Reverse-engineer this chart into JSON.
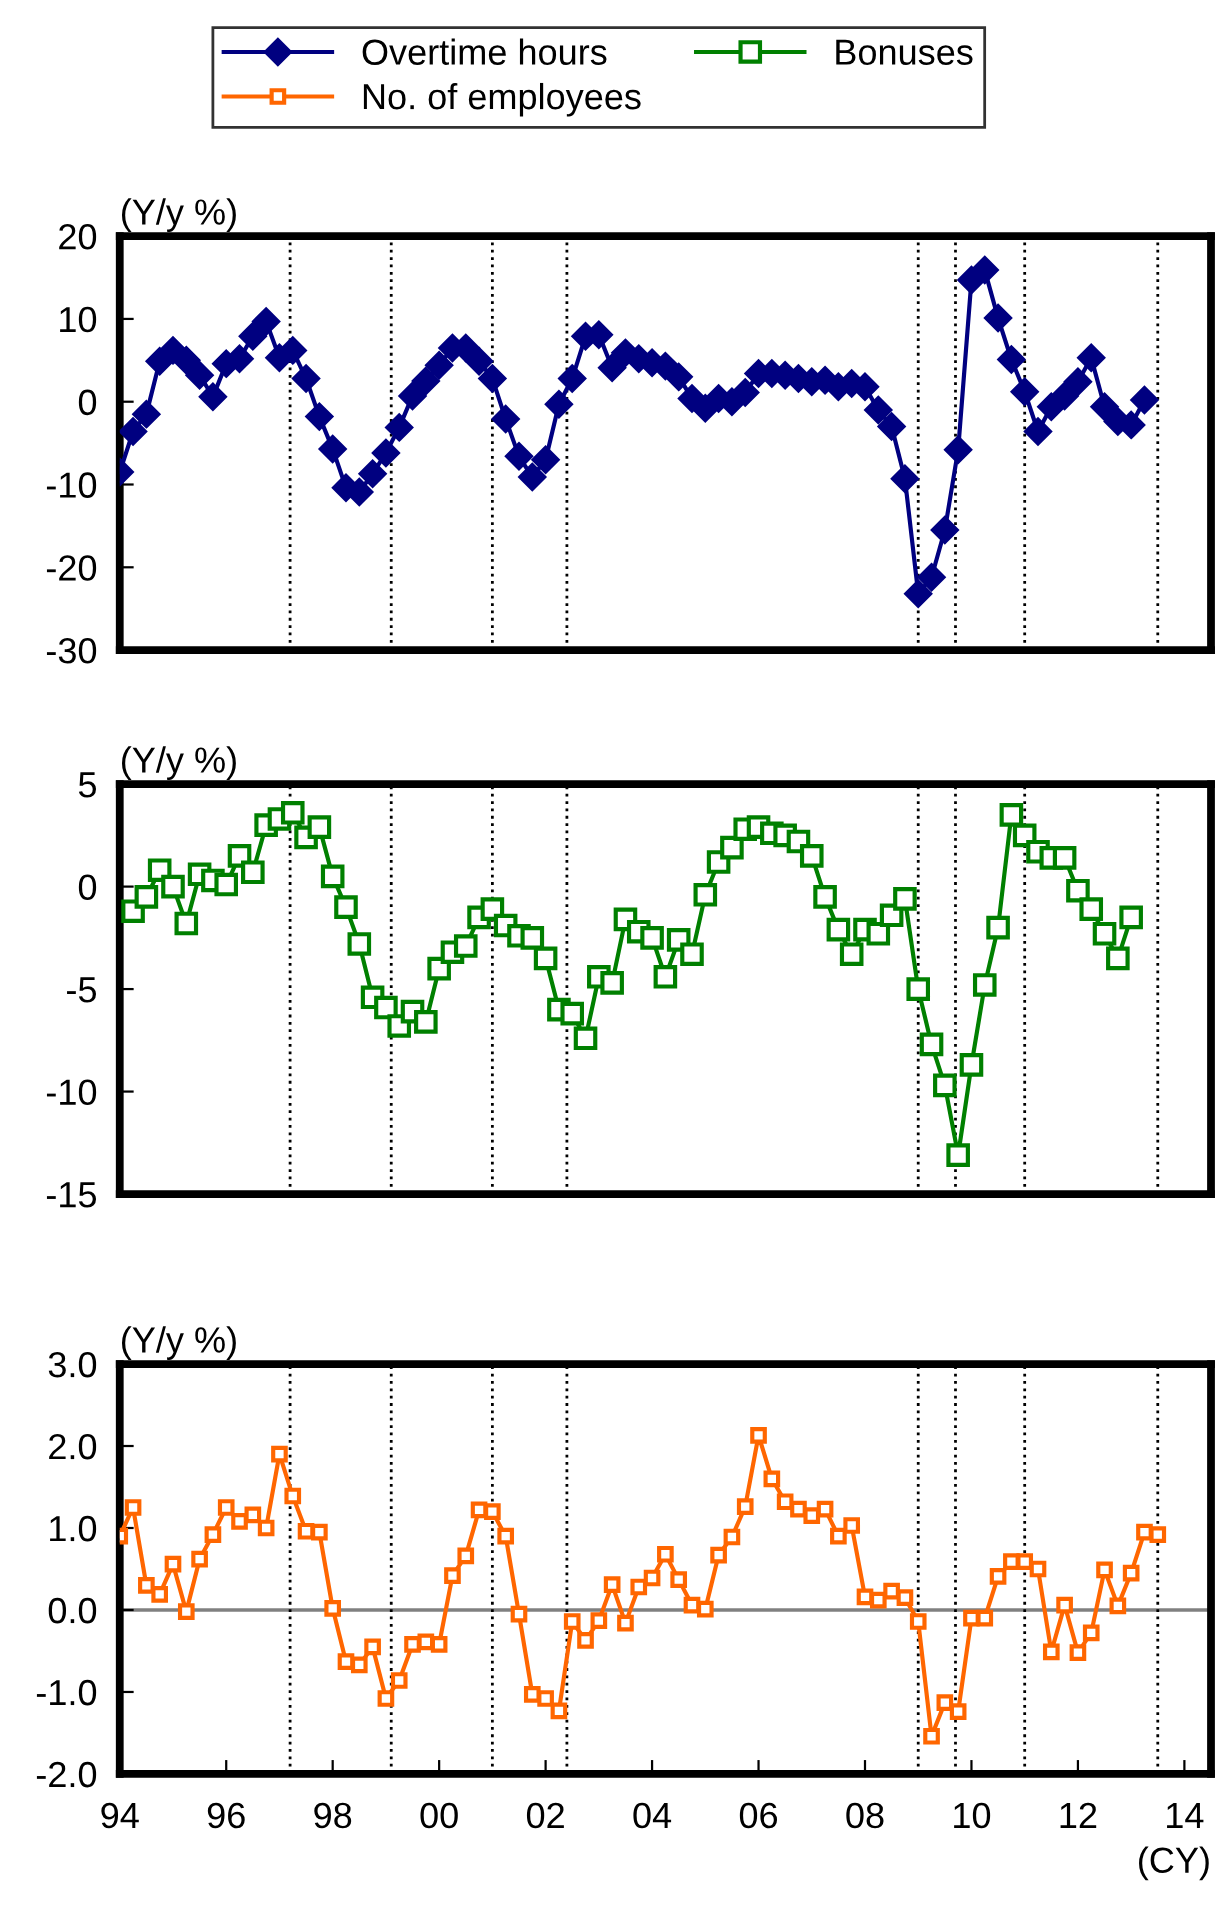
{
  "chart_data": [
    {
      "type": "line",
      "ylabel": "(Y/y %)",
      "xlim": [
        1994,
        2014.5
      ],
      "ylim": [
        -30,
        20
      ],
      "yticks": [
        -30,
        -20,
        -10,
        0,
        10,
        20
      ],
      "tick_labels": "y",
      "grid": false,
      "legend": "top",
      "ref_lines": [
        {
          "axis": "x",
          "value": 1997.2,
          "color": "#000000",
          "line_style": "dotted"
        },
        {
          "axis": "x",
          "value": 1999.1,
          "color": "#000000",
          "line_style": "dotted"
        },
        {
          "axis": "x",
          "value": 2001.0,
          "color": "#000000",
          "line_style": "dotted"
        },
        {
          "axis": "x",
          "value": 2002.4,
          "color": "#000000",
          "line_style": "dotted"
        },
        {
          "axis": "x",
          "value": 2009.0,
          "color": "#000000",
          "line_style": "dotted"
        },
        {
          "axis": "x",
          "value": 2009.7,
          "color": "#000000",
          "line_style": "dotted"
        },
        {
          "axis": "x",
          "value": 2011.0,
          "color": "#000000",
          "line_style": "dotted"
        },
        {
          "axis": "x",
          "value": 2013.5,
          "color": "#000000",
          "line_style": "dotted"
        }
      ],
      "series": [
        {
          "name": "Overtime hours",
          "color": "#000080",
          "marker": "diamond",
          "line_style": "solid",
          "x": [
            1994,
            1994.25,
            1994.5,
            1994.75,
            1995,
            1995.25,
            1995.5,
            1995.75,
            1996,
            1996.25,
            1996.5,
            1996.75,
            1997,
            1997.25,
            1997.5,
            1997.75,
            1998,
            1998.25,
            1998.5,
            1998.75,
            1999,
            1999.25,
            1999.5,
            1999.75,
            2000,
            2000.25,
            2000.5,
            2000.75,
            2001,
            2001.25,
            2001.5,
            2001.75,
            2002,
            2002.25,
            2002.5,
            2002.75,
            2003,
            2003.25,
            2003.5,
            2003.75,
            2004,
            2004.25,
            2004.5,
            2004.75,
            2005,
            2005.25,
            2005.5,
            2005.75,
            2006,
            2006.25,
            2006.5,
            2006.75,
            2007,
            2007.25,
            2007.5,
            2007.75,
            2008,
            2008.25,
            2008.5,
            2008.75,
            2009,
            2009.25,
            2009.5,
            2009.75,
            2010,
            2010.25,
            2010.5,
            2010.75,
            2011,
            2011.25,
            2011.5,
            2011.75,
            2012,
            2012.25,
            2012.5,
            2012.75,
            2013,
            2013.25
          ],
          "values": [
            -8.5,
            -3.6,
            -1.5,
            4.9,
            6.2,
            5.0,
            3.2,
            0.6,
            4.6,
            5.2,
            7.9,
            9.7,
            5.3,
            6.2,
            2.8,
            -1.8,
            -5.7,
            -10.4,
            -10.9,
            -8.7,
            -6.2,
            -3.1,
            0.7,
            2.5,
            4.4,
            6.5,
            6.5,
            4.9,
            2.8,
            -2.1,
            -6.6,
            -9.1,
            -7.0,
            -0.3,
            2.8,
            7.9,
            8.1,
            4.1,
            5.9,
            5.2,
            4.7,
            4.3,
            3.0,
            0.4,
            -0.8,
            0.4,
            0.0,
            1.1,
            3.4,
            3.4,
            3.2,
            2.8,
            2.4,
            2.6,
            1.8,
            2.2,
            1.8,
            -1.0,
            -3.0,
            -9.3,
            -23.2,
            -21.2,
            -15.5,
            -5.8,
            14.7,
            15.9,
            10.1,
            5.1,
            1.2,
            -3.6,
            -0.6,
            0.7,
            2.4,
            5.3,
            -0.6,
            -2.4,
            -2.8,
            0.2
          ]
        }
      ]
    },
    {
      "type": "line",
      "ylabel": "(Y/y %)",
      "xlim": [
        1994,
        2014.5
      ],
      "ylim": [
        -15,
        5
      ],
      "yticks": [
        -15,
        -10,
        -5,
        0,
        5
      ],
      "tick_labels": "y",
      "grid": false,
      "legend": "top",
      "ref_lines": [
        {
          "axis": "x",
          "value": 1997.2,
          "color": "#000000",
          "line_style": "dotted"
        },
        {
          "axis": "x",
          "value": 1999.1,
          "color": "#000000",
          "line_style": "dotted"
        },
        {
          "axis": "x",
          "value": 2001.0,
          "color": "#000000",
          "line_style": "dotted"
        },
        {
          "axis": "x",
          "value": 2002.4,
          "color": "#000000",
          "line_style": "dotted"
        },
        {
          "axis": "x",
          "value": 2009.0,
          "color": "#000000",
          "line_style": "dotted"
        },
        {
          "axis": "x",
          "value": 2009.7,
          "color": "#000000",
          "line_style": "dotted"
        },
        {
          "axis": "x",
          "value": 2011.0,
          "color": "#000000",
          "line_style": "dotted"
        },
        {
          "axis": "x",
          "value": 2013.5,
          "color": "#000000",
          "line_style": "dotted"
        }
      ],
      "series": [
        {
          "name": "Bonuses",
          "color": "#008000",
          "marker": "square",
          "line_style": "solid",
          "x": [
            1994.25,
            1994.5,
            1994.75,
            1995,
            1995.25,
            1995.5,
            1995.75,
            1996,
            1996.25,
            1996.5,
            1996.75,
            1997,
            1997.25,
            1997.5,
            1997.75,
            1998,
            1998.25,
            1998.5,
            1998.75,
            1999,
            1999.25,
            1999.5,
            1999.75,
            2000,
            2000.25,
            2000.5,
            2000.75,
            2001,
            2001.25,
            2001.5,
            2001.75,
            2002,
            2002.25,
            2002.5,
            2002.75,
            2003,
            2003.25,
            2003.5,
            2003.75,
            2004,
            2004.25,
            2004.5,
            2004.75,
            2005,
            2005.25,
            2005.5,
            2005.75,
            2006,
            2006.25,
            2006.5,
            2006.75,
            2007,
            2007.25,
            2007.5,
            2007.75,
            2008,
            2008.25,
            2008.5,
            2008.75,
            2009,
            2009.25,
            2009.5,
            2009.75,
            2010,
            2010.25,
            2010.5,
            2010.75,
            2011,
            2011.25,
            2011.5,
            2011.75,
            2012,
            2012.25,
            2012.5,
            2012.75,
            2013
          ],
          "values": [
            -1.2,
            -0.5,
            0.8,
            0.0,
            -1.8,
            0.6,
            0.3,
            0.1,
            1.5,
            0.7,
            3.0,
            3.3,
            3.6,
            2.4,
            2.9,
            0.5,
            -1.0,
            -2.8,
            -5.4,
            -5.9,
            -6.8,
            -6.1,
            -6.6,
            -4.0,
            -3.2,
            -2.9,
            -1.5,
            -1.1,
            -1.9,
            -2.4,
            -2.5,
            -3.5,
            -6.0,
            -6.2,
            -7.4,
            -4.4,
            -4.7,
            -1.6,
            -2.2,
            -2.5,
            -4.4,
            -2.6,
            -3.3,
            -0.4,
            1.2,
            1.9,
            2.8,
            2.9,
            2.6,
            2.5,
            2.2,
            1.5,
            -0.5,
            -2.1,
            -3.3,
            -2.1,
            -2.3,
            -1.4,
            -0.6,
            -5.0,
            -7.7,
            -9.7,
            -13.1,
            -8.7,
            -4.8,
            -2.0,
            3.5,
            2.5,
            1.7,
            1.4,
            1.4,
            -0.2,
            -1.1,
            -2.3,
            -3.5,
            -1.5
          ]
        }
      ]
    },
    {
      "type": "line",
      "ylabel": "(Y/y %)",
      "xlabel": "(CY)",
      "xlim": [
        1994,
        2014.5
      ],
      "ylim": [
        -2,
        3
      ],
      "yticks": [
        {
          "value": -2,
          "label": "-2.0"
        },
        {
          "value": -1,
          "label": "-1.0"
        },
        {
          "value": 0,
          "label": "0.0"
        },
        {
          "value": 1,
          "label": "1.0"
        },
        {
          "value": 2,
          "label": "2.0"
        },
        {
          "value": 3,
          "label": "3.0"
        }
      ],
      "xticks": [
        {
          "value": 1994,
          "label": "94"
        },
        {
          "value": 1996,
          "label": "96"
        },
        {
          "value": 1998,
          "label": "98"
        },
        {
          "value": 2000,
          "label": "00"
        },
        {
          "value": 2002,
          "label": "02"
        },
        {
          "value": 2004,
          "label": "04"
        },
        {
          "value": 2006,
          "label": "06"
        },
        {
          "value": 2008,
          "label": "08"
        },
        {
          "value": 2010,
          "label": "10"
        },
        {
          "value": 2012,
          "label": "12"
        },
        {
          "value": 2014,
          "label": "14"
        }
      ],
      "grid": false,
      "legend": "top",
      "ref_lines": [
        {
          "axis": "y",
          "value": 0,
          "color": "#808080",
          "line_style": "solid"
        },
        {
          "axis": "x",
          "value": 1997.2,
          "color": "#000000",
          "line_style": "dotted"
        },
        {
          "axis": "x",
          "value": 1999.1,
          "color": "#000000",
          "line_style": "dotted"
        },
        {
          "axis": "x",
          "value": 2001.0,
          "color": "#000000",
          "line_style": "dotted"
        },
        {
          "axis": "x",
          "value": 2002.4,
          "color": "#000000",
          "line_style": "dotted"
        },
        {
          "axis": "x",
          "value": 2009.0,
          "color": "#000000",
          "line_style": "dotted"
        },
        {
          "axis": "x",
          "value": 2009.7,
          "color": "#000000",
          "line_style": "dotted"
        },
        {
          "axis": "x",
          "value": 2011.0,
          "color": "#000000",
          "line_style": "dotted"
        },
        {
          "axis": "x",
          "value": 2013.5,
          "color": "#000000",
          "line_style": "dotted"
        }
      ],
      "series": [
        {
          "name": "No. of employees",
          "color": "#ff6600",
          "marker": "square",
          "line_style": "solid",
          "x": [
            1994,
            1994.25,
            1994.5,
            1994.75,
            1995,
            1995.25,
            1995.5,
            1995.75,
            1996,
            1996.25,
            1996.5,
            1996.75,
            1997,
            1997.25,
            1997.5,
            1997.75,
            1998,
            1998.25,
            1998.5,
            1998.75,
            1999,
            1999.25,
            1999.5,
            1999.75,
            2000,
            2000.25,
            2000.5,
            2000.75,
            2001,
            2001.25,
            2001.5,
            2001.75,
            2002,
            2002.25,
            2002.5,
            2002.75,
            2003,
            2003.25,
            2003.5,
            2003.75,
            2004,
            2004.25,
            2004.5,
            2004.75,
            2005,
            2005.25,
            2005.5,
            2005.75,
            2006,
            2006.25,
            2006.5,
            2006.75,
            2007,
            2007.25,
            2007.5,
            2007.75,
            2008,
            2008.25,
            2008.5,
            2008.75,
            2009,
            2009.25,
            2009.5,
            2009.75,
            2010,
            2010.25,
            2010.5,
            2010.75,
            2011,
            2011.25,
            2011.5,
            2011.75,
            2012,
            2012.25,
            2012.5,
            2012.75,
            2013,
            2013.25,
            2013.5
          ],
          "values": [
            0.9,
            1.25,
            0.3,
            0.19,
            0.56,
            -0.02,
            0.62,
            0.92,
            1.25,
            1.08,
            1.16,
            1.0,
            1.9,
            1.39,
            0.96,
            0.95,
            0.02,
            -0.63,
            -0.67,
            -0.45,
            -1.08,
            -0.86,
            -0.42,
            -0.39,
            -0.42,
            0.42,
            0.66,
            1.22,
            1.2,
            0.9,
            -0.05,
            -1.03,
            -1.08,
            -1.23,
            -0.14,
            -0.37,
            -0.13,
            0.31,
            -0.16,
            0.28,
            0.39,
            0.68,
            0.37,
            0.06,
            0.01,
            0.67,
            0.89,
            1.26,
            2.13,
            1.6,
            1.32,
            1.23,
            1.15,
            1.23,
            0.9,
            1.03,
            0.16,
            0.12,
            0.23,
            0.15,
            -0.14,
            -1.54,
            -1.13,
            -1.24,
            -0.1,
            -0.1,
            0.41,
            0.59,
            0.59,
            0.5,
            -0.51,
            0.06,
            -0.52,
            -0.28,
            0.49,
            0.05,
            0.45,
            0.95,
            0.92
          ]
        }
      ]
    }
  ]
}
